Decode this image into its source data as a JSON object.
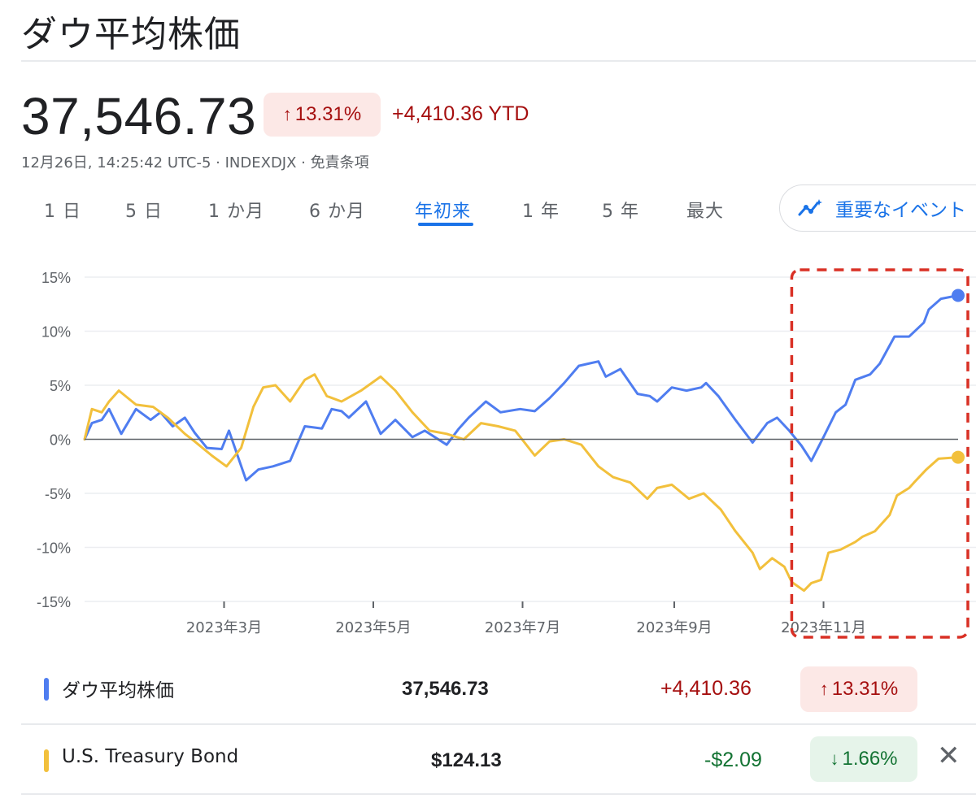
{
  "header": {
    "title": "ダウ平均株価",
    "price": "37,546.73",
    "change_pct": "13.31%",
    "change_ytd": "+4,410.36 YTD",
    "meta": "12月26日, 14:25:42 UTC-5 · INDEXDJX · 免責条項"
  },
  "tabs": [
    "1 日",
    "5 日",
    "1 か月",
    "6 か月",
    "年初来",
    "1 年",
    "5 年",
    "最大"
  ],
  "active_tab": "年初来",
  "events_button": "重要なイベント",
  "legend": [
    {
      "name": "ダウ平均株価",
      "value": "37,546.73",
      "change": "+4,410.36",
      "pct": "13.31%",
      "direction": "up",
      "color": "#4f7df0"
    },
    {
      "name": "U.S. Treasury Bond",
      "value": "$124.13",
      "change": "-$2.09",
      "pct": "1.66%",
      "direction": "down",
      "color": "#f2c03c"
    }
  ],
  "colors": {
    "up": "#a50e0e",
    "down": "#137333",
    "accent": "#1a73e8",
    "highlight": "#d93025"
  },
  "chart_data": {
    "type": "line",
    "ylabel": "",
    "xlabel": "",
    "ylim": [
      -15,
      15
    ],
    "yticks": [
      15,
      10,
      5,
      0,
      -5,
      -10,
      -15
    ],
    "ytick_labels": [
      "15%",
      "10%",
      "5%",
      "0%",
      "-5%",
      "-10%",
      "-15%"
    ],
    "xlim": [
      "2023-01-03",
      "2023-12-26"
    ],
    "xticks": [
      "2023-03-01",
      "2023-05-01",
      "2023-07-01",
      "2023-09-01",
      "2023-11-01"
    ],
    "xtick_labels": [
      "2023年3月",
      "2023年5月",
      "2023年7月",
      "2023年9月",
      "2023年11月"
    ],
    "baseline": 0,
    "highlight_range": [
      "2023-10-19",
      "2023-12-26"
    ],
    "series": [
      {
        "name": "ダウ平均株価",
        "color": "#4f7df0",
        "points": [
          [
            "2023-01-03",
            0
          ],
          [
            "2023-01-06",
            1.5
          ],
          [
            "2023-01-10",
            1.8
          ],
          [
            "2023-01-13",
            2.8
          ],
          [
            "2023-01-18",
            0.5
          ],
          [
            "2023-01-24",
            2.8
          ],
          [
            "2023-01-30",
            1.8
          ],
          [
            "2023-02-03",
            2.5
          ],
          [
            "2023-02-08",
            1.2
          ],
          [
            "2023-02-13",
            2.0
          ],
          [
            "2023-02-17",
            0.6
          ],
          [
            "2023-02-22",
            -0.8
          ],
          [
            "2023-02-28",
            -0.9
          ],
          [
            "2023-03-03",
            0.8
          ],
          [
            "2023-03-10",
            -3.8
          ],
          [
            "2023-03-15",
            -2.8
          ],
          [
            "2023-03-21",
            -2.5
          ],
          [
            "2023-03-28",
            -2.0
          ],
          [
            "2023-04-03",
            1.2
          ],
          [
            "2023-04-10",
            1.0
          ],
          [
            "2023-04-14",
            2.8
          ],
          [
            "2023-04-18",
            2.6
          ],
          [
            "2023-04-21",
            2.0
          ],
          [
            "2023-04-28",
            3.5
          ],
          [
            "2023-05-04",
            0.5
          ],
          [
            "2023-05-10",
            1.8
          ],
          [
            "2023-05-17",
            0.2
          ],
          [
            "2023-05-22",
            0.8
          ],
          [
            "2023-05-31",
            -0.5
          ],
          [
            "2023-06-05",
            1.0
          ],
          [
            "2023-06-09",
            2.0
          ],
          [
            "2023-06-16",
            3.5
          ],
          [
            "2023-06-22",
            2.5
          ],
          [
            "2023-06-30",
            2.8
          ],
          [
            "2023-07-06",
            2.6
          ],
          [
            "2023-07-12",
            3.8
          ],
          [
            "2023-07-18",
            5.2
          ],
          [
            "2023-07-24",
            6.8
          ],
          [
            "2023-07-28",
            7.0
          ],
          [
            "2023-08-01",
            7.2
          ],
          [
            "2023-08-04",
            5.8
          ],
          [
            "2023-08-10",
            6.5
          ],
          [
            "2023-08-17",
            4.2
          ],
          [
            "2023-08-22",
            4.0
          ],
          [
            "2023-08-25",
            3.5
          ],
          [
            "2023-08-31",
            4.8
          ],
          [
            "2023-09-06",
            4.5
          ],
          [
            "2023-09-12",
            4.8
          ],
          [
            "2023-09-14",
            5.2
          ],
          [
            "2023-09-19",
            4.0
          ],
          [
            "2023-09-26",
            1.8
          ],
          [
            "2023-10-03",
            -0.3
          ],
          [
            "2023-10-09",
            1.5
          ],
          [
            "2023-10-13",
            2.0
          ],
          [
            "2023-10-18",
            0.8
          ],
          [
            "2023-10-23",
            -0.6
          ],
          [
            "2023-10-27",
            -2.0
          ],
          [
            "2023-11-01",
            0.2
          ],
          [
            "2023-11-06",
            2.5
          ],
          [
            "2023-11-10",
            3.2
          ],
          [
            "2023-11-14",
            5.5
          ],
          [
            "2023-11-20",
            6.0
          ],
          [
            "2023-11-24",
            7.0
          ],
          [
            "2023-11-30",
            9.5
          ],
          [
            "2023-12-06",
            9.5
          ],
          [
            "2023-12-12",
            10.8
          ],
          [
            "2023-12-14",
            12.0
          ],
          [
            "2023-12-19",
            13.0
          ],
          [
            "2023-12-26",
            13.31
          ]
        ]
      },
      {
        "name": "U.S. Treasury Bond",
        "color": "#f2c03c",
        "points": [
          [
            "2023-01-03",
            0
          ],
          [
            "2023-01-06",
            2.8
          ],
          [
            "2023-01-10",
            2.5
          ],
          [
            "2023-01-13",
            3.5
          ],
          [
            "2023-01-17",
            4.5
          ],
          [
            "2023-01-24",
            3.2
          ],
          [
            "2023-01-31",
            3.0
          ],
          [
            "2023-02-06",
            2.0
          ],
          [
            "2023-02-13",
            0.5
          ],
          [
            "2023-02-17",
            -0.2
          ],
          [
            "2023-02-24",
            -1.5
          ],
          [
            "2023-03-02",
            -2.5
          ],
          [
            "2023-03-08",
            -0.8
          ],
          [
            "2023-03-13",
            3.0
          ],
          [
            "2023-03-17",
            4.8
          ],
          [
            "2023-03-22",
            5.0
          ],
          [
            "2023-03-28",
            3.5
          ],
          [
            "2023-04-03",
            5.5
          ],
          [
            "2023-04-07",
            6.0
          ],
          [
            "2023-04-12",
            4.0
          ],
          [
            "2023-04-18",
            3.5
          ],
          [
            "2023-04-26",
            4.5
          ],
          [
            "2023-05-04",
            5.8
          ],
          [
            "2023-05-10",
            4.5
          ],
          [
            "2023-05-17",
            2.5
          ],
          [
            "2023-05-24",
            0.8
          ],
          [
            "2023-05-31",
            0.5
          ],
          [
            "2023-06-07",
            0.0
          ],
          [
            "2023-06-14",
            1.5
          ],
          [
            "2023-06-21",
            1.2
          ],
          [
            "2023-06-28",
            0.8
          ],
          [
            "2023-07-06",
            -1.5
          ],
          [
            "2023-07-12",
            -0.2
          ],
          [
            "2023-07-18",
            0.0
          ],
          [
            "2023-07-25",
            -0.5
          ],
          [
            "2023-08-01",
            -2.5
          ],
          [
            "2023-08-07",
            -3.5
          ],
          [
            "2023-08-14",
            -4.0
          ],
          [
            "2023-08-21",
            -5.5
          ],
          [
            "2023-08-25",
            -4.5
          ],
          [
            "2023-08-31",
            -4.2
          ],
          [
            "2023-09-07",
            -5.5
          ],
          [
            "2023-09-13",
            -5.0
          ],
          [
            "2023-09-20",
            -6.5
          ],
          [
            "2023-09-26",
            -8.5
          ],
          [
            "2023-10-03",
            -10.5
          ],
          [
            "2023-10-06",
            -12.0
          ],
          [
            "2023-10-11",
            -11.0
          ],
          [
            "2023-10-16",
            -11.8
          ],
          [
            "2023-10-19",
            -13.2
          ],
          [
            "2023-10-24",
            -14.0
          ],
          [
            "2023-10-27",
            -13.3
          ],
          [
            "2023-10-31",
            -13.0
          ],
          [
            "2023-11-03",
            -10.5
          ],
          [
            "2023-11-08",
            -10.2
          ],
          [
            "2023-11-14",
            -9.5
          ],
          [
            "2023-11-17",
            -9.0
          ],
          [
            "2023-11-22",
            -8.5
          ],
          [
            "2023-11-28",
            -7.0
          ],
          [
            "2023-12-01",
            -5.2
          ],
          [
            "2023-12-06",
            -4.5
          ],
          [
            "2023-12-08",
            -4.0
          ],
          [
            "2023-12-13",
            -2.8
          ],
          [
            "2023-12-18",
            -1.8
          ],
          [
            "2023-12-26",
            -1.66
          ]
        ]
      }
    ]
  }
}
